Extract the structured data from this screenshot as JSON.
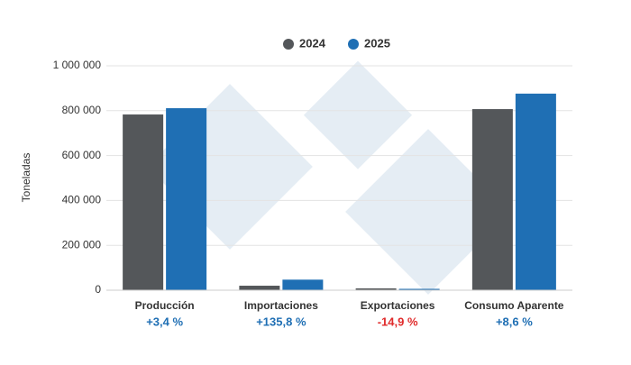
{
  "chart_data": {
    "type": "bar",
    "y_label": "Toneladas",
    "categories": [
      "Producción",
      "Importaciones",
      "Exportaciones",
      "Consumo Aparente"
    ],
    "changes": [
      "+3,4 %",
      "+135,8 %",
      "-14,9 %",
      "+8,6 %"
    ],
    "change_colors": [
      "#1f6fb4",
      "#1f6fb4",
      "#e02b2b",
      "#1f6fb4"
    ],
    "series": [
      {
        "name": "2024",
        "color": "#54575a",
        "values": [
          783000,
          20000,
          8000,
          807000
        ]
      },
      {
        "name": "2025",
        "color": "#1f6fb4",
        "values": [
          811000,
          47000,
          6000,
          876000
        ]
      }
    ],
    "ylim": [
      0,
      1000000
    ],
    "yticks": [
      0,
      {
        "value": 200000,
        "label": "200 000"
      },
      {
        "value": 400000,
        "label": "400 000"
      },
      {
        "value": 600000,
        "label": "600 000"
      },
      {
        "value": 800000,
        "label": "800 000"
      },
      {
        "value": 1000000,
        "label": "1 000 000"
      }
    ],
    "grid": true
  }
}
